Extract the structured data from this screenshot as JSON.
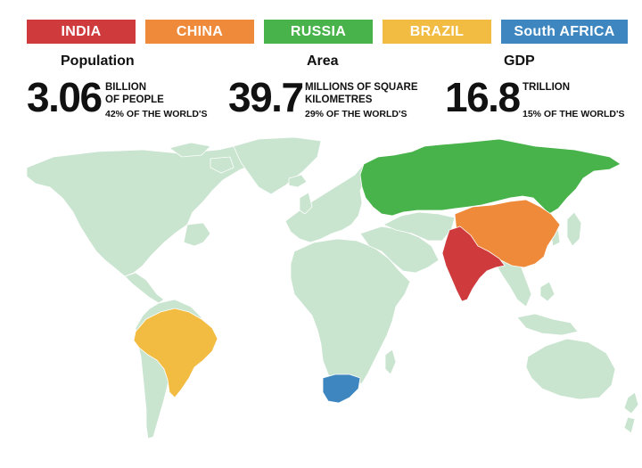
{
  "legend": [
    {
      "label": "INDIA",
      "color": "#cf3a3c"
    },
    {
      "label": "CHINA",
      "color": "#ee8a3a"
    },
    {
      "label": "RUSSIA",
      "color": "#49b34b"
    },
    {
      "label": "BRAZIL",
      "color": "#f2bb42"
    },
    {
      "label": "South AFRICA",
      "color": "#3d86c0"
    }
  ],
  "stats": {
    "population": {
      "title": "Population",
      "value": "3.06",
      "unit_line1": "BILLION",
      "unit_line2": "OF PEOPLE",
      "share": "42% OF THE WORLD'S"
    },
    "area": {
      "title": "Area",
      "value": "39.7",
      "unit_line1": "MILLIONS OF SQUARE",
      "unit_line2": "KILOMETRES",
      "share": "29% OF THE WORLD'S"
    },
    "gdp": {
      "title": "GDP",
      "value": "16.8",
      "unit_line1": "TRILLION",
      "share": "15% OF THE WORLD'S"
    }
  },
  "map": {
    "land_color": "#c9e4cf",
    "border_color": "#ffffff",
    "highlighted": [
      "Russia",
      "China",
      "India",
      "Brazil",
      "South Africa"
    ]
  }
}
